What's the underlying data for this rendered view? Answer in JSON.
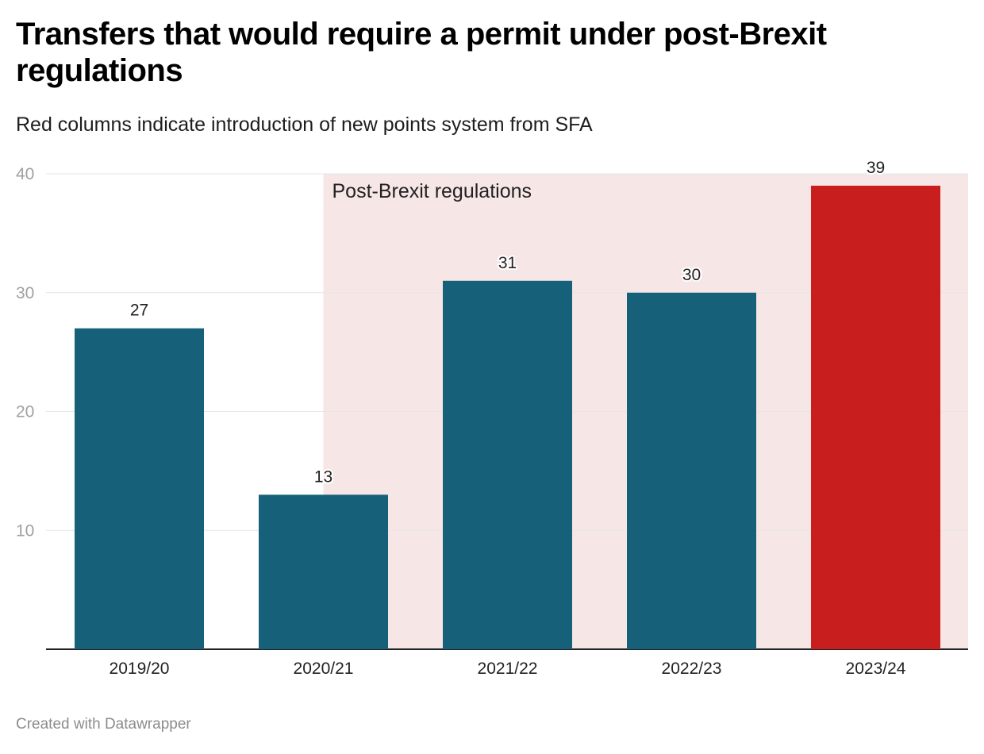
{
  "title": "Transfers that would require a permit under post-Brexit regulations",
  "subtitle": "Red columns indicate introduction of new points system from SFA",
  "credit": "Created with Datawrapper",
  "chart_data": {
    "type": "bar",
    "categories": [
      "2019/20",
      "2020/21",
      "2021/22",
      "2022/23",
      "2023/24"
    ],
    "values": [
      27,
      13,
      31,
      30,
      39
    ],
    "highlighted": [
      false,
      false,
      false,
      false,
      true
    ],
    "ylim": [
      0,
      40
    ],
    "yticks": [
      10,
      20,
      30,
      40
    ],
    "grid": true,
    "xlabel": "",
    "ylabel": "",
    "annotation": {
      "label": "Post-Brexit regulations",
      "from_category": "2020/21",
      "to_category": "2023/24"
    },
    "colors": {
      "bar": "#17607a",
      "highlight": "#c81e1e",
      "shade": "#f7e6e6",
      "grid": "#e6e6e6",
      "baseline": "#222222"
    }
  }
}
